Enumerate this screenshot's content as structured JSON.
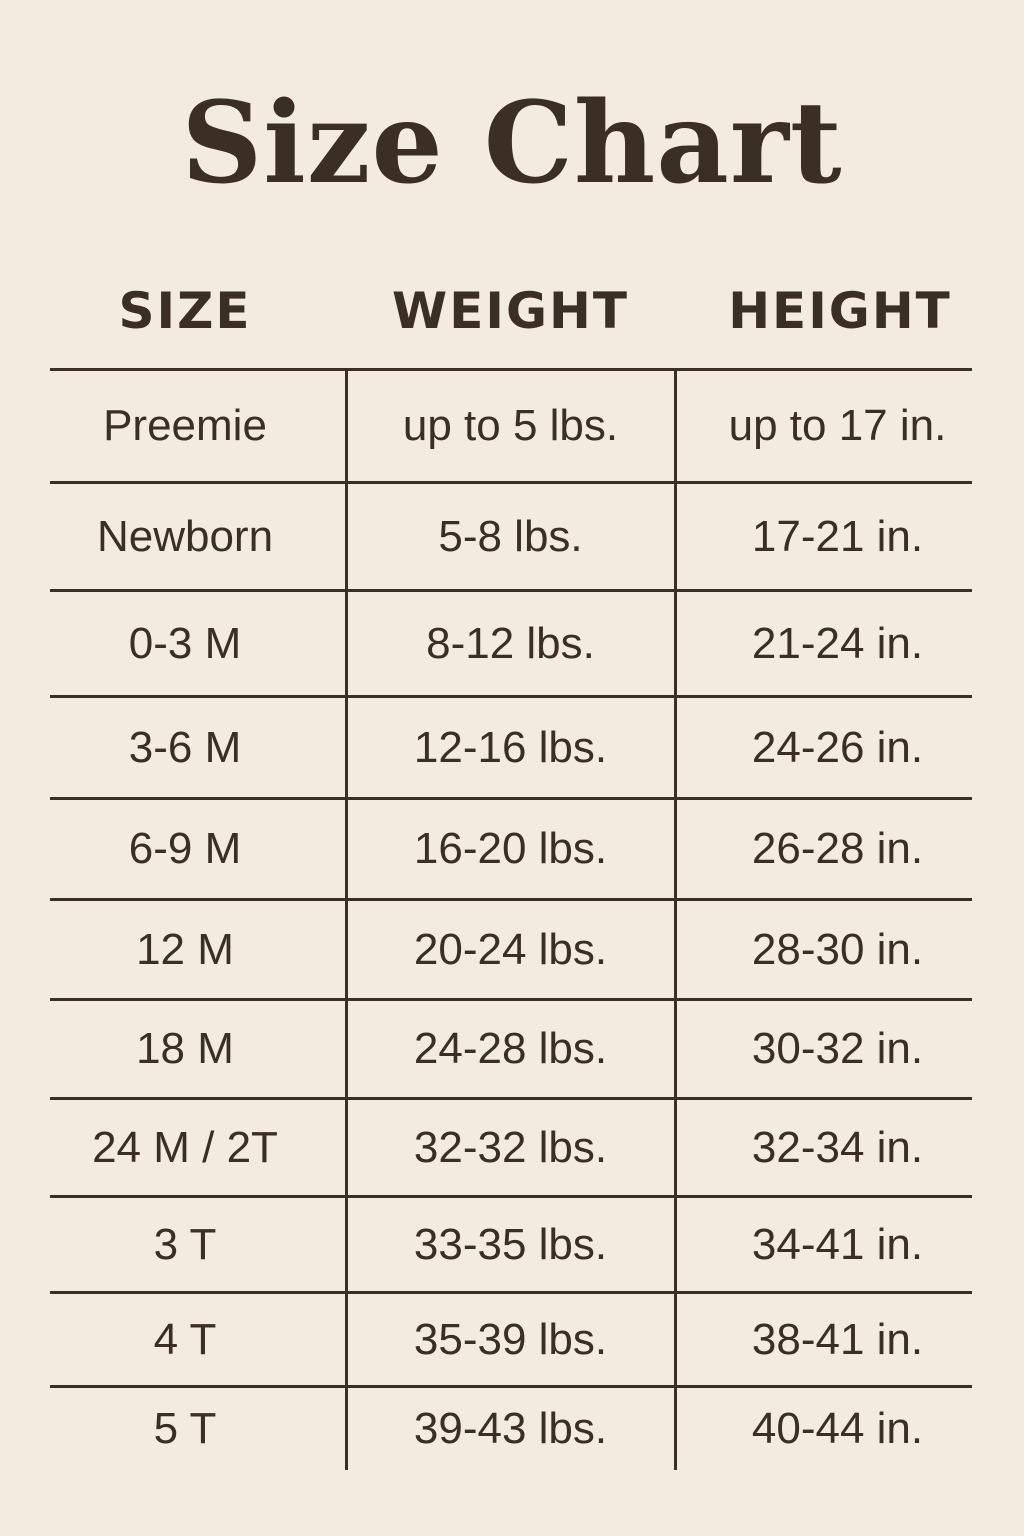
{
  "title": "Size Chart",
  "headers": [
    "SIZE",
    "WEIGHT",
    "HEIGHT"
  ],
  "rows": [
    [
      "Preemie",
      "up to 5 lbs.",
      "up to 17 in."
    ],
    [
      "Newborn",
      "5-8 lbs.",
      "17-21 in."
    ],
    [
      "0-3 M",
      "8-12 lbs.",
      "21-24 in."
    ],
    [
      "3-6 M",
      "12-16 lbs.",
      "24-26 in."
    ],
    [
      "6-9 M",
      "16-20 lbs.",
      "26-28 in."
    ],
    [
      "12 M",
      "20-24 lbs.",
      "28-30 in."
    ],
    [
      "18 M",
      "24-28 lbs.",
      "30-32 in."
    ],
    [
      "24 M / 2T",
      "32-32 lbs.",
      "32-34 in."
    ],
    [
      "3 T",
      "33-35 lbs.",
      "34-41 in."
    ],
    [
      "4 T",
      "35-39 lbs.",
      "38-41 in."
    ],
    [
      "5 T",
      "39-43 lbs.",
      "40-44 in."
    ]
  ],
  "colors": {
    "background": "#f3ebe0",
    "text": "#3b2e25"
  }
}
